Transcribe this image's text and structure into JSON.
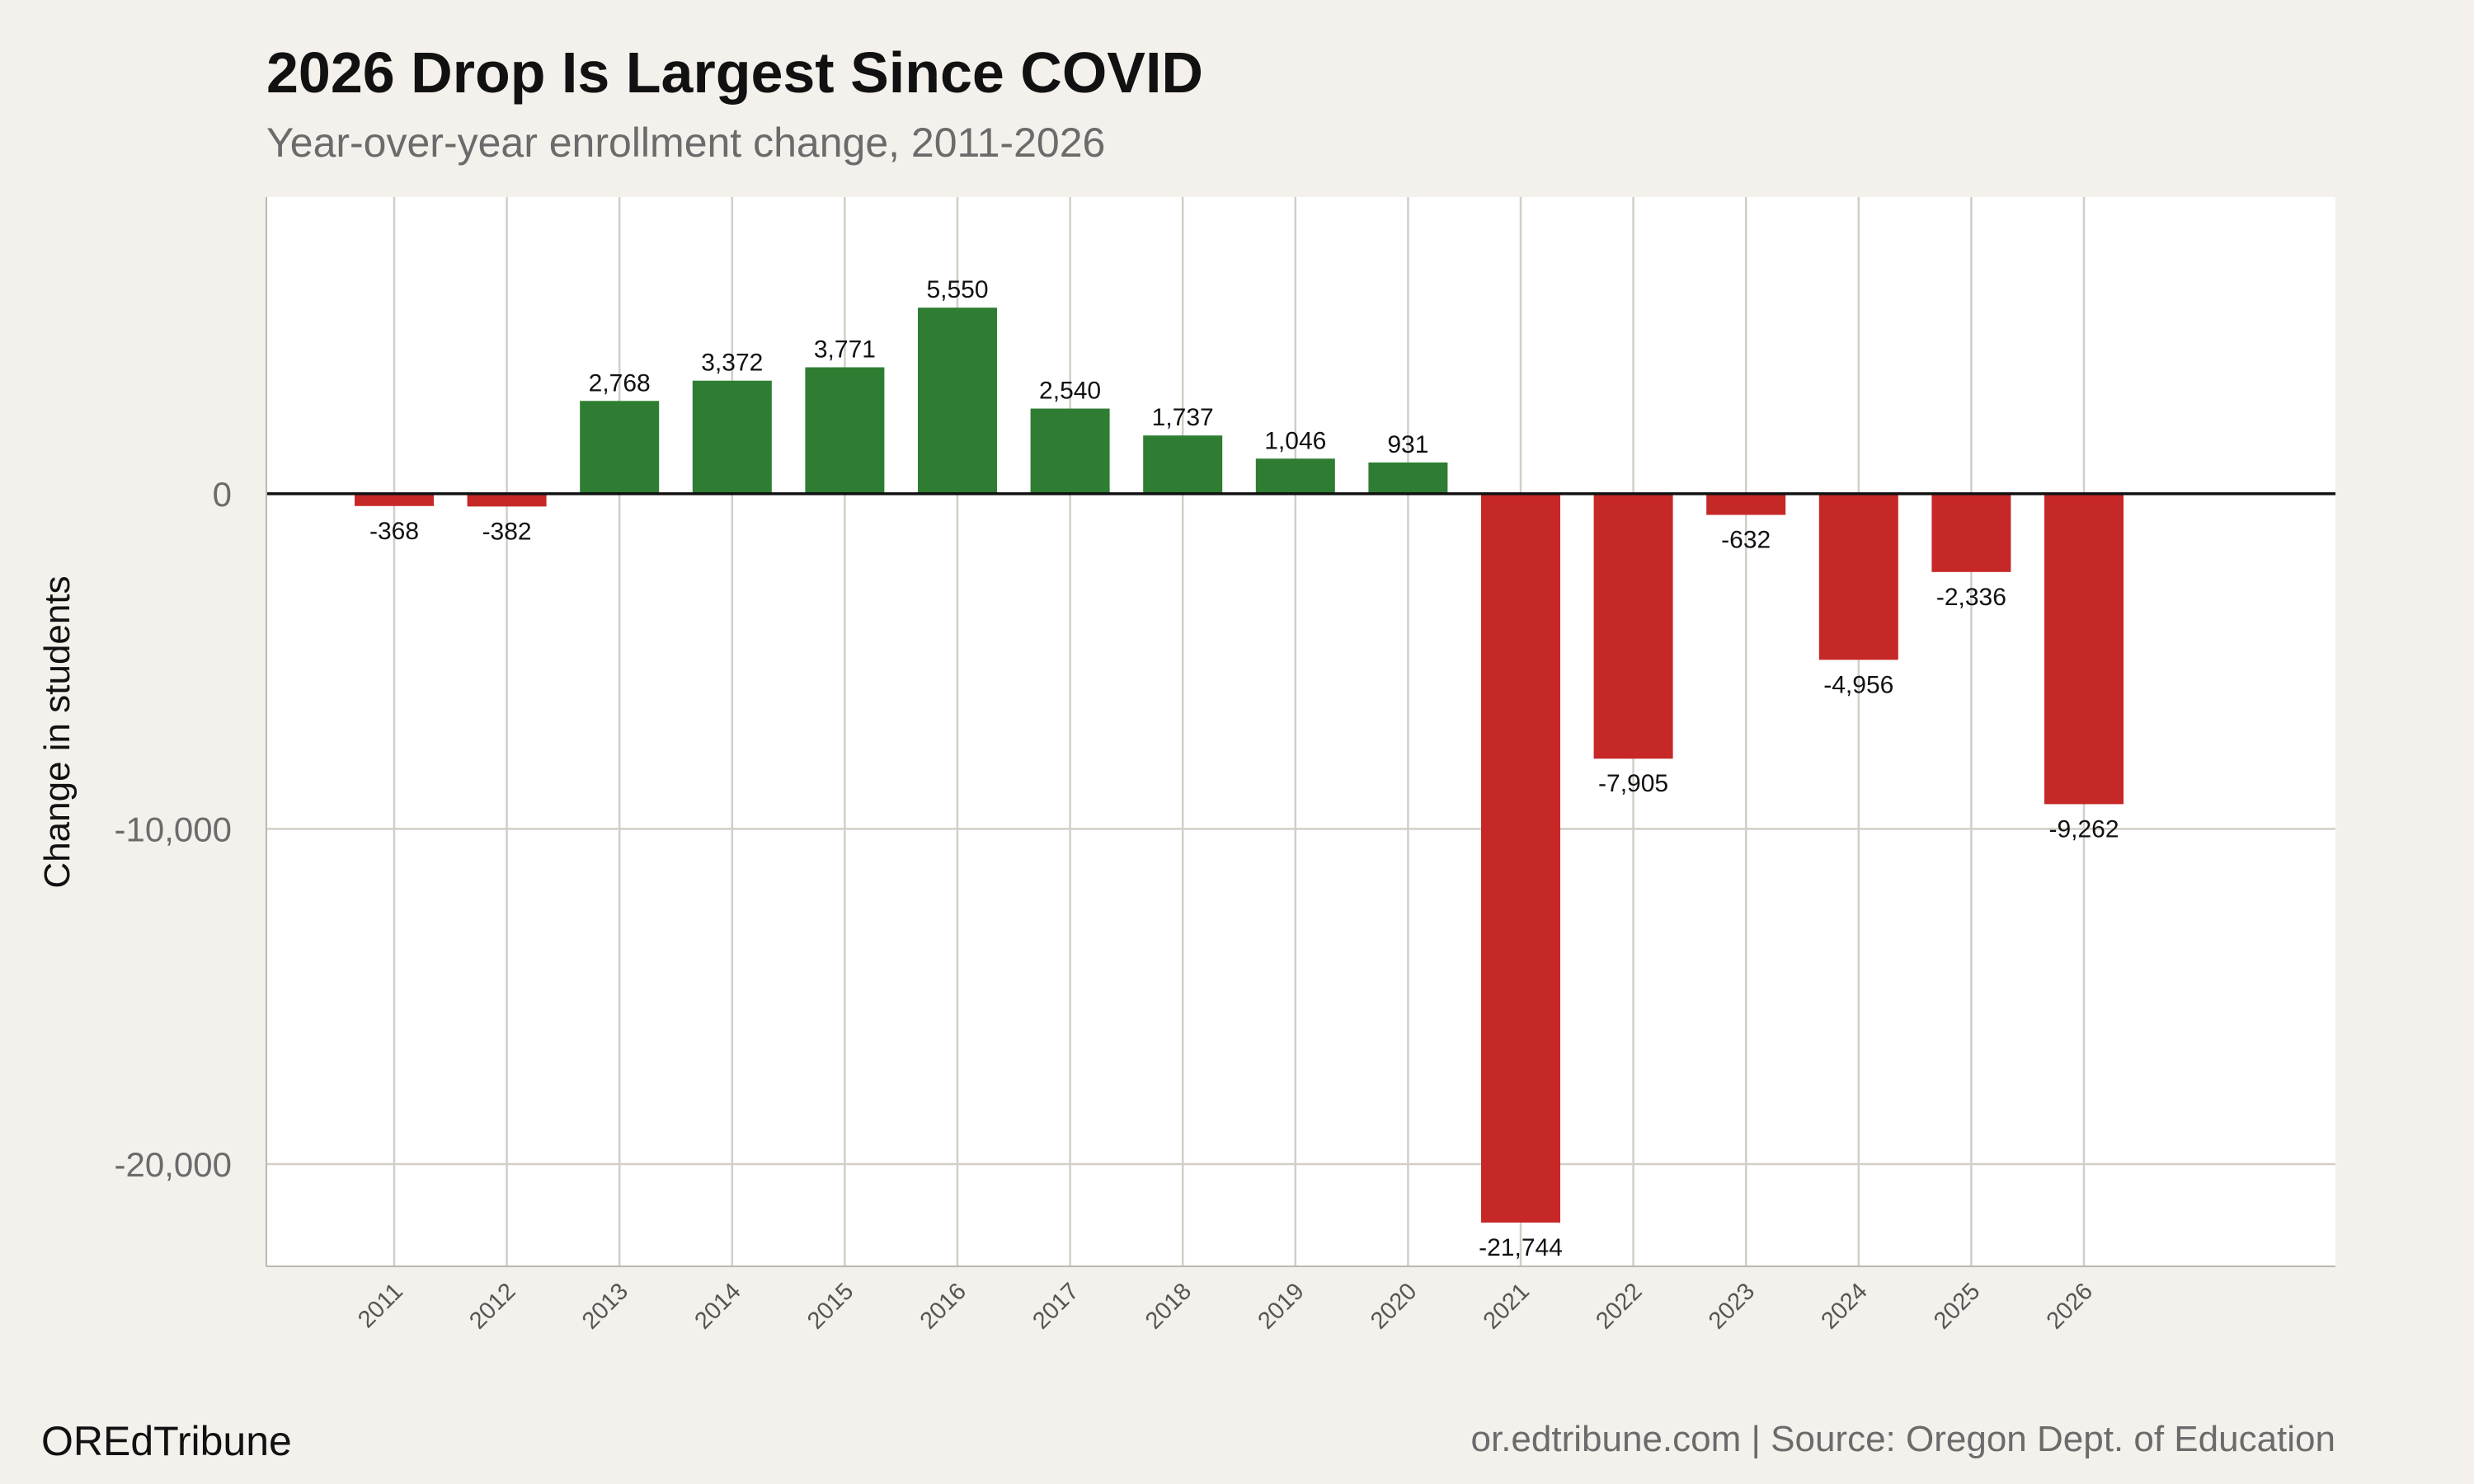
{
  "chart_data": {
    "type": "bar",
    "title": "2026 Drop Is Largest Since COVID",
    "subtitle": "Year-over-year enrollment change, 2011-2026",
    "xlabel": "",
    "ylabel": "Change in students",
    "categories": [
      "2011",
      "2012",
      "2013",
      "2014",
      "2015",
      "2016",
      "2017",
      "2018",
      "2019",
      "2020",
      "2021",
      "2022",
      "2023",
      "2024",
      "2025",
      "2026"
    ],
    "values": [
      -368,
      -382,
      2768,
      3372,
      3771,
      5550,
      2540,
      1737,
      1046,
      931,
      -21744,
      -7905,
      -632,
      -4956,
      -2336,
      -9262
    ],
    "data_labels": [
      "-368",
      "-382",
      "2,768",
      "3,372",
      "3,771",
      "5,550",
      "2,540",
      "1,737",
      "1,046",
      "931",
      "-21,744",
      "-7,905",
      "-632",
      "-4,956",
      "-2,336",
      "-9,262"
    ],
    "ylim": [
      -23050,
      8850
    ],
    "yticks": [
      0,
      -10000,
      -20000
    ],
    "ytick_labels": [
      "0",
      "-10,000",
      "-20,000"
    ],
    "grid": true,
    "colors": {
      "positive": "#2e7d32",
      "negative": "#c62828",
      "background": "#f4f1ec",
      "panel": "#ffffff",
      "grid": "#d3cec6",
      "zero_line": "#111111"
    }
  },
  "footer": {
    "brand": "OREdTribune",
    "source": "or.edtribune.com | Source: Oregon Dept. of Education"
  }
}
